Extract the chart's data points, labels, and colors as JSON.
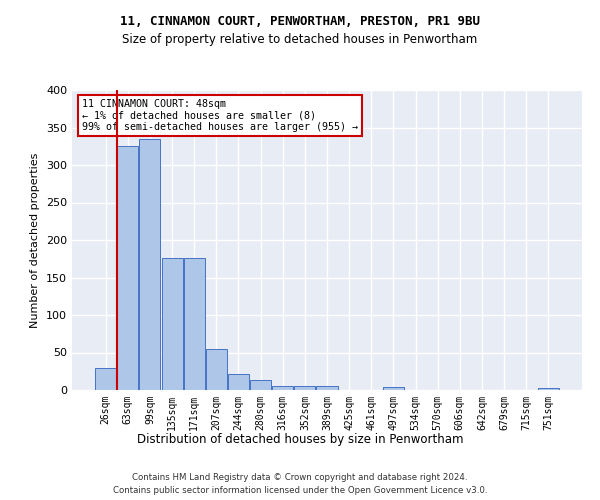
{
  "title_line1": "11, CINNAMON COURT, PENWORTHAM, PRESTON, PR1 9BU",
  "title_line2": "Size of property relative to detached houses in Penwortham",
  "xlabel": "Distribution of detached houses by size in Penwortham",
  "ylabel": "Number of detached properties",
  "annotation_line1": "11 CINNAMON COURT: 48sqm",
  "annotation_line2": "← 1% of detached houses are smaller (8)",
  "annotation_line3": "99% of semi-detached houses are larger (955) →",
  "categories": [
    "26sqm",
    "63sqm",
    "99sqm",
    "135sqm",
    "171sqm",
    "207sqm",
    "244sqm",
    "280sqm",
    "316sqm",
    "352sqm",
    "389sqm",
    "425sqm",
    "461sqm",
    "497sqm",
    "534sqm",
    "570sqm",
    "606sqm",
    "642sqm",
    "679sqm",
    "715sqm",
    "751sqm"
  ],
  "values": [
    30,
    325,
    335,
    176,
    176,
    55,
    22,
    14,
    6,
    5,
    5,
    0,
    0,
    4,
    0,
    0,
    0,
    0,
    0,
    0,
    3
  ],
  "bar_color": "#aec6e8",
  "bar_edge_color": "#4472c4",
  "annotation_box_color": "#ffffff",
  "annotation_box_edge": "#cc0000",
  "background_color": "#e8edf5",
  "grid_color": "#ffffff",
  "figure_bg": "#ffffff",
  "footer_line1": "Contains HM Land Registry data © Crown copyright and database right 2024.",
  "footer_line2": "Contains public sector information licensed under the Open Government Licence v3.0."
}
